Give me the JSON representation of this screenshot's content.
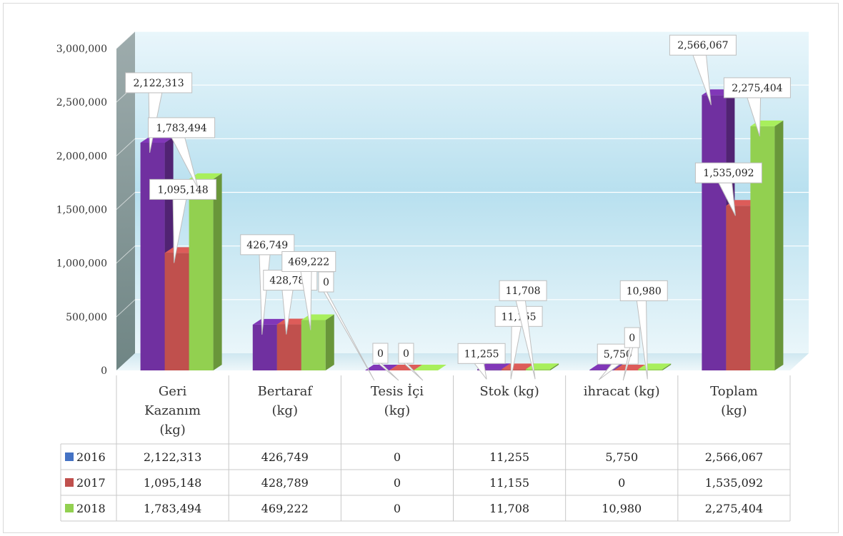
{
  "chart_data": {
    "type": "bar",
    "categories": [
      [
        "Geri",
        "Kazanım",
        "(kg)"
      ],
      [
        "Bertaraf",
        "(kg)"
      ],
      [
        "Tesis İçi",
        "(kg)"
      ],
      [
        "Stok (kg)"
      ],
      [
        "ihracat (kg)"
      ],
      [
        "Toplam",
        "(kg)"
      ]
    ],
    "series": [
      {
        "name": "2016",
        "color": "#7030A0",
        "legend_color": "#4472C4",
        "values": [
          2122313,
          426749,
          0,
          11255,
          5750,
          2566067
        ],
        "labels": [
          "2,122,313",
          "426,749",
          "0",
          "11,255",
          "5,750",
          "2,566,067"
        ]
      },
      {
        "name": "2017",
        "color": "#C0504D",
        "legend_color": "#C0504D",
        "values": [
          1095148,
          428789,
          0,
          11155,
          0,
          1535092
        ],
        "labels": [
          "1,095,148",
          "428,789",
          "0",
          "11,155",
          "0",
          "1,535,092"
        ]
      },
      {
        "name": "2018",
        "color": "#92D050",
        "legend_color": "#92D050",
        "values": [
          1783494,
          469222,
          0,
          11708,
          10980,
          2275404
        ],
        "labels": [
          "1,783,494",
          "469,222",
          "0",
          "11,708",
          "10,980",
          "2,275,404"
        ]
      }
    ],
    "yticks": [
      "0",
      "500,000",
      "1,000,000",
      "1,500,000",
      "2,000,000",
      "2,500,000",
      "3,000,000"
    ],
    "ylim": [
      0,
      3000000
    ],
    "grid": true,
    "legend": "data-table"
  }
}
